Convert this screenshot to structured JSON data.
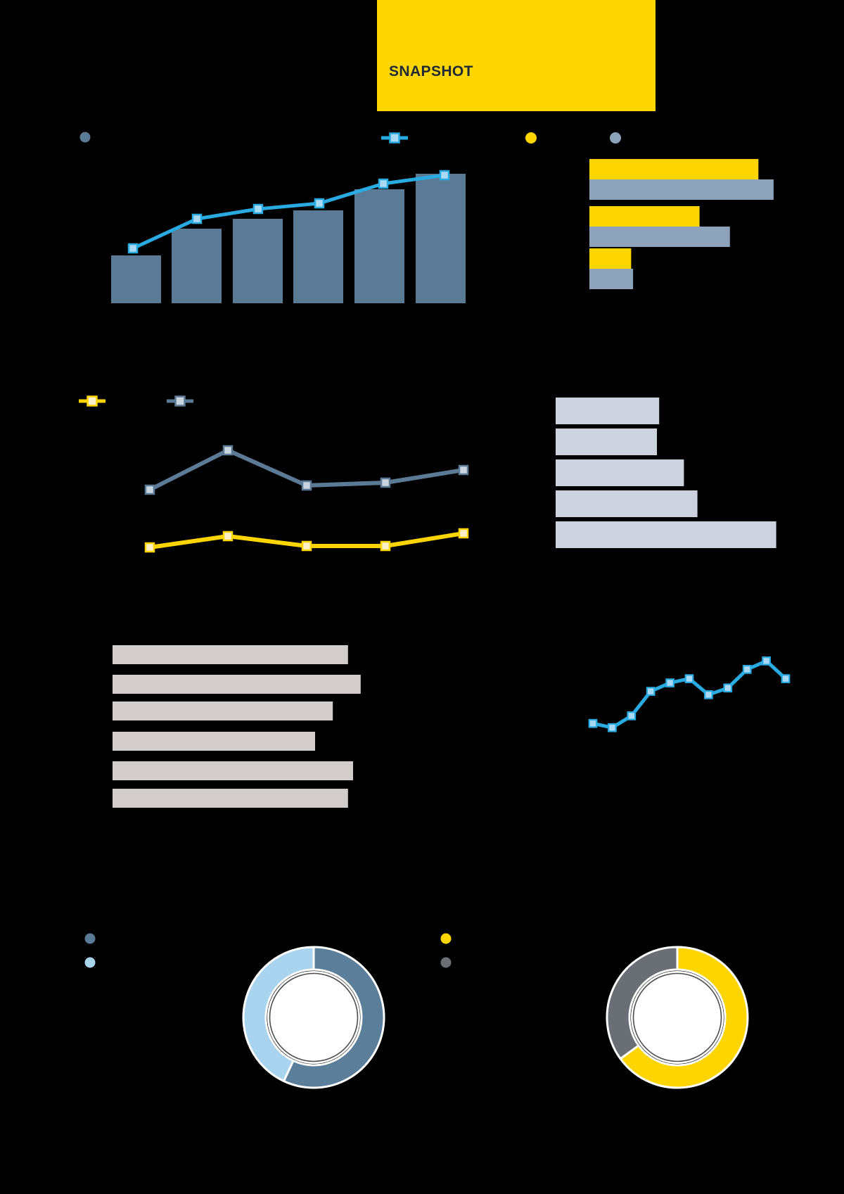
{
  "banner": {
    "label": "SNAPSHOT",
    "bg": "#FFD600",
    "text_color": "#1E2B36"
  },
  "palette": {
    "page_bg": "#000000",
    "slate": "#5B7A96",
    "slate_fill": "#CAD4DF",
    "sky_blue": "#29ABE2",
    "sky_blue_fill": "#A9D9F5",
    "yellow": "#FFD500",
    "yellow_fill": "#FBF0C7",
    "gray_blue": "#8DA3BC",
    "light_gray_blue": "#CCD3DE",
    "beige": "#D2CCCB",
    "dark_gray": "#6A6F76",
    "light_blue": "#A9D4EF",
    "slate_donut": "#5B7E9B",
    "donut_inner_ring": "#4D4D4D",
    "white": "#FFFFFF"
  },
  "chart_data": [
    {
      "id": "combo",
      "type": "bar",
      "note": "column chart with line overlay, 6 periods, axis labels not visible",
      "ylim": [
        0,
        100
      ],
      "series": [
        {
          "name": "bars",
          "type": "bar",
          "color_key": "slate",
          "values": [
            34,
            53,
            60,
            66,
            81,
            92
          ]
        },
        {
          "name": "trend",
          "type": "line",
          "color_key": "sky_blue",
          "values": [
            39,
            60,
            67,
            71,
            85,
            91
          ]
        }
      ],
      "legend": [
        {
          "marker": "dot",
          "color_key": "slate"
        },
        {
          "marker": "line",
          "color_key": "sky_blue"
        }
      ]
    },
    {
      "id": "grouped-hbar",
      "type": "bar",
      "orientation": "horizontal",
      "note": "3 groups x 2 series, labels not visible",
      "xlim": [
        0,
        100
      ],
      "series": [
        {
          "name": "yellow",
          "color_key": "yellow",
          "values": [
            89,
            58,
            22
          ]
        },
        {
          "name": "gray",
          "color_key": "gray_blue",
          "values": [
            97,
            74,
            23
          ]
        }
      ],
      "legend": [
        {
          "marker": "dot",
          "color_key": "yellow"
        },
        {
          "marker": "dot",
          "color_key": "gray_blue"
        }
      ]
    },
    {
      "id": "dual-line",
      "type": "line",
      "note": "two series, 5 points each, labels not visible",
      "ylim": [
        0,
        100
      ],
      "series": [
        {
          "name": "slate-line",
          "color_key": "slate",
          "values": [
            47,
            75,
            50,
            52,
            61
          ]
        },
        {
          "name": "yellow-line",
          "color_key": "yellow",
          "values": [
            6,
            14,
            7,
            7,
            16
          ]
        }
      ],
      "legend": [
        {
          "marker": "line",
          "color_key": "yellow"
        },
        {
          "marker": "line",
          "color_key": "slate"
        }
      ]
    },
    {
      "id": "hbar-light",
      "type": "bar",
      "orientation": "horizontal",
      "note": "5 bars, light gray-blue, labels not visible",
      "xlim": [
        0,
        100
      ],
      "values": [
        46,
        45,
        57,
        63,
        98
      ],
      "color_key": "light_gray_blue"
    },
    {
      "id": "hbar-beige",
      "type": "bar",
      "orientation": "horizontal",
      "note": "6 bars, beige, labels not visible",
      "xlim": [
        0,
        100
      ],
      "values": [
        93,
        98,
        87,
        80,
        95,
        93
      ],
      "color_key": "beige"
    },
    {
      "id": "trend-line",
      "type": "line",
      "note": "11 points, labels not visible",
      "ylim": [
        0,
        100
      ],
      "values": [
        14,
        9,
        23,
        52,
        62,
        67,
        48,
        56,
        78,
        88,
        67
      ],
      "color_key": "sky_blue"
    },
    {
      "id": "donut-left",
      "type": "pie",
      "slices": [
        {
          "color_key": "slate_donut",
          "pct": 57
        },
        {
          "color_key": "light_blue",
          "pct": 43
        }
      ],
      "legend": [
        {
          "marker": "dot",
          "color_key": "slate"
        },
        {
          "marker": "dot",
          "color_key": "light_blue"
        }
      ]
    },
    {
      "id": "donut-right",
      "type": "pie",
      "slices": [
        {
          "color_key": "yellow",
          "pct": 65
        },
        {
          "color_key": "dark_gray",
          "pct": 35
        }
      ],
      "legend": [
        {
          "marker": "dot",
          "color_key": "yellow"
        },
        {
          "marker": "dot",
          "color_key": "dark_gray"
        }
      ]
    }
  ]
}
